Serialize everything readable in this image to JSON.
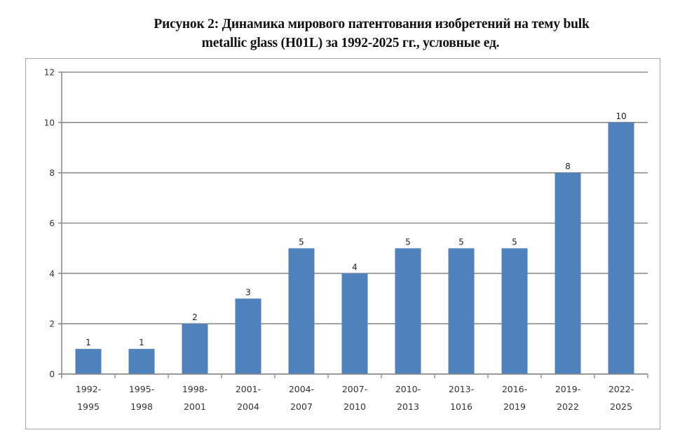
{
  "chart_data": {
    "type": "bar",
    "title": "Рисунок 2: Динамика мирового патентования изобретений на тему bulk metallic glass (H01L) за 1992-2025 гг., условные ед.",
    "title_lines": [
      "Рисунок 2: Динамика мирового патентования изобретений на тему bulk",
      "metallic glass (H01L) за 1992-2025 гг., условные ед."
    ],
    "xlabel": "",
    "ylabel": "",
    "categories": [
      [
        "1992-",
        "1995"
      ],
      [
        "1995-",
        "1998"
      ],
      [
        "1998-",
        "2001"
      ],
      [
        "2001-",
        "2004"
      ],
      [
        "2004-",
        "2007"
      ],
      [
        "2007-",
        "2010"
      ],
      [
        "2010-",
        "2013"
      ],
      [
        "2013-",
        "1016"
      ],
      [
        "2016-",
        "2019"
      ],
      [
        "2019-",
        "2022"
      ],
      [
        "2022-",
        "2025"
      ]
    ],
    "values": [
      1,
      1,
      2,
      3,
      5,
      4,
      5,
      5,
      5,
      8,
      10
    ],
    "ylim": [
      0,
      12
    ],
    "yticks": [
      0,
      2,
      4,
      6,
      8,
      10,
      12
    ],
    "grid": true,
    "legend": null,
    "bar_color": "#4f81bd",
    "data_labels": true
  }
}
